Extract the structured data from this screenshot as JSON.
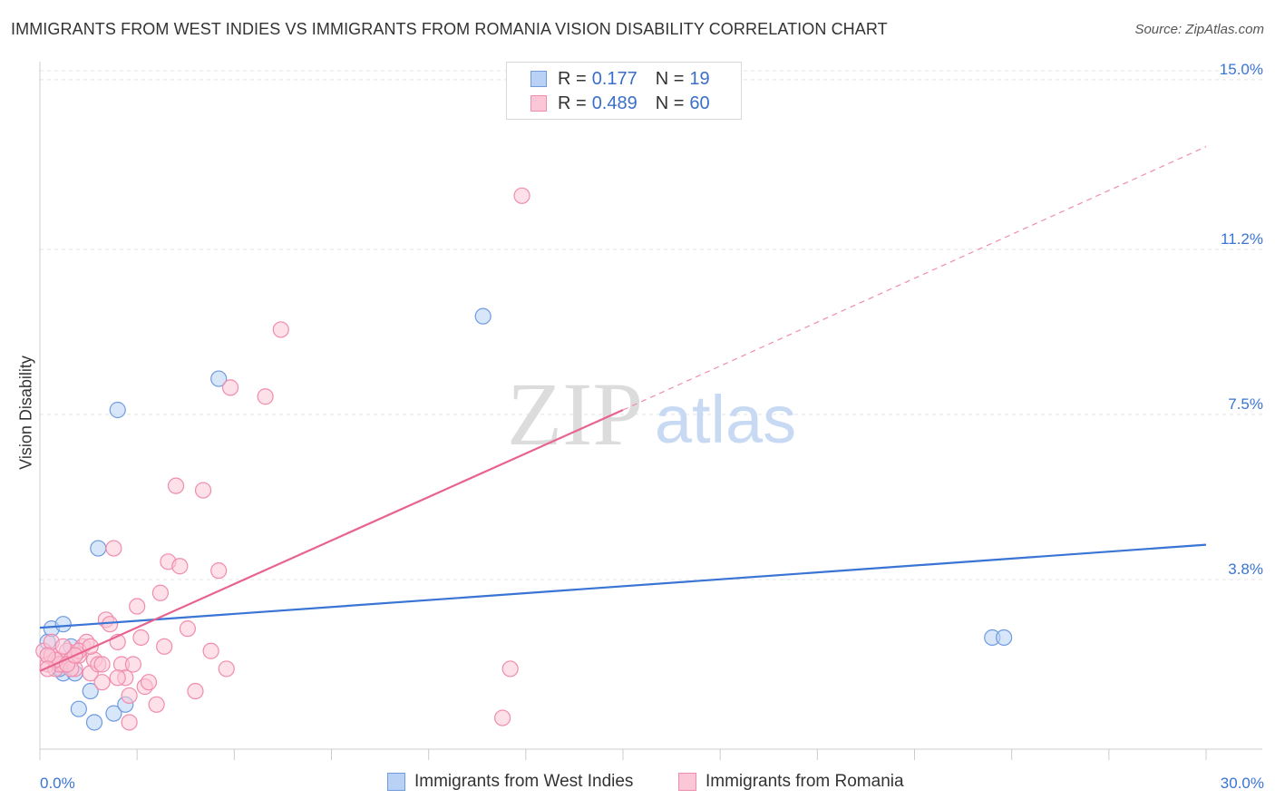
{
  "title": "IMMIGRANTS FROM WEST INDIES VS IMMIGRANTS FROM ROMANIA VISION DISABILITY CORRELATION CHART",
  "source": "Source: ZipAtlas.com",
  "watermark": {
    "zip": "ZIP",
    "atlas": "atlas"
  },
  "legend": {
    "r_label": "R =",
    "n_label": "N =",
    "rows": [
      {
        "r": "0.177",
        "n": "19",
        "fill": "#b8d1f5",
        "stroke": "#6f9be0"
      },
      {
        "r": "0.489",
        "n": "60",
        "fill": "#fbc6d6",
        "stroke": "#f08cad"
      }
    ]
  },
  "chart_data": {
    "type": "scatter",
    "title": "IMMIGRANTS FROM WEST INDIES VS IMMIGRANTS FROM ROMANIA VISION DISABILITY CORRELATION CHART",
    "xlabel": "",
    "ylabel": "Vision Disability",
    "xlim": [
      0,
      30
    ],
    "ylim": [
      0,
      15.2
    ],
    "x_ticks": [
      {
        "value": 0,
        "label": "0.0%"
      },
      {
        "value": 30,
        "label": "30.0%"
      }
    ],
    "y_ticks": [
      {
        "value": 3.8,
        "label": "3.8%"
      },
      {
        "value": 7.5,
        "label": "7.5%"
      },
      {
        "value": 11.2,
        "label": "11.2%"
      },
      {
        "value": 15.0,
        "label": "15.0%"
      }
    ],
    "grid": true,
    "legend_position": "top-center",
    "series": [
      {
        "name": "Immigrants from West Indies",
        "color": "#3a74d4",
        "fill": "#b8d1f5",
        "stroke": "#6f9be0",
        "points": [
          [
            0.2,
            2.4
          ],
          [
            0.3,
            2.7
          ],
          [
            0.6,
            2.8
          ],
          [
            0.8,
            2.3
          ],
          [
            0.6,
            1.7
          ],
          [
            0.9,
            1.7
          ],
          [
            1.0,
            0.9
          ],
          [
            1.3,
            1.3
          ],
          [
            1.4,
            0.6
          ],
          [
            1.5,
            4.5
          ],
          [
            1.9,
            0.8
          ],
          [
            2.2,
            1.0
          ],
          [
            2.0,
            7.6
          ],
          [
            4.6,
            8.3
          ],
          [
            11.4,
            9.7
          ],
          [
            24.5,
            2.5
          ],
          [
            24.8,
            2.5
          ],
          [
            0.5,
            1.8
          ],
          [
            0.2,
            2.1
          ]
        ],
        "trend": {
          "x": [
            0,
            30
          ],
          "y": [
            2.72,
            4.58
          ],
          "dashed_extension": false
        }
      },
      {
        "name": "Immigrants from Romania",
        "color": "#e8638f",
        "fill": "#fbc6d6",
        "stroke": "#f08cad",
        "points": [
          [
            0.1,
            2.2
          ],
          [
            0.2,
            1.9
          ],
          [
            0.3,
            2.1
          ],
          [
            0.4,
            1.8
          ],
          [
            0.5,
            2.0
          ],
          [
            0.6,
            1.9
          ],
          [
            0.7,
            2.2
          ],
          [
            0.8,
            2.0
          ],
          [
            0.9,
            1.8
          ],
          [
            1.0,
            2.1
          ],
          [
            1.1,
            2.3
          ],
          [
            1.2,
            2.4
          ],
          [
            1.3,
            1.7
          ],
          [
            1.4,
            2.0
          ],
          [
            1.5,
            1.9
          ],
          [
            1.6,
            1.5
          ],
          [
            1.7,
            2.9
          ],
          [
            1.8,
            2.8
          ],
          [
            1.9,
            4.5
          ],
          [
            2.0,
            2.4
          ],
          [
            2.1,
            1.9
          ],
          [
            2.2,
            1.6
          ],
          [
            2.3,
            1.2
          ],
          [
            2.4,
            1.9
          ],
          [
            2.5,
            3.2
          ],
          [
            2.6,
            2.5
          ],
          [
            2.7,
            1.4
          ],
          [
            2.8,
            1.5
          ],
          [
            3.0,
            1.0
          ],
          [
            3.1,
            3.5
          ],
          [
            3.2,
            2.3
          ],
          [
            3.3,
            4.2
          ],
          [
            3.5,
            5.9
          ],
          [
            3.6,
            4.1
          ],
          [
            3.8,
            2.7
          ],
          [
            4.0,
            1.3
          ],
          [
            4.2,
            5.8
          ],
          [
            4.4,
            2.2
          ],
          [
            4.6,
            4.0
          ],
          [
            4.8,
            1.8
          ],
          [
            4.9,
            8.1
          ],
          [
            5.8,
            7.9
          ],
          [
            6.2,
            9.4
          ],
          [
            12.4,
            12.4
          ],
          [
            12.1,
            1.8
          ],
          [
            11.9,
            0.7
          ],
          [
            2.3,
            0.6
          ],
          [
            0.3,
            2.4
          ],
          [
            0.5,
            1.9
          ],
          [
            1.0,
            2.2
          ],
          [
            0.8,
            1.8
          ],
          [
            1.3,
            2.3
          ],
          [
            0.4,
            2.0
          ],
          [
            0.2,
            2.1
          ],
          [
            1.6,
            1.9
          ],
          [
            2.0,
            1.6
          ],
          [
            0.7,
            1.9
          ],
          [
            0.9,
            2.1
          ],
          [
            0.6,
            2.3
          ],
          [
            0.2,
            1.8
          ]
        ],
        "trend": {
          "x": [
            0,
            15
          ],
          "y": [
            1.75,
            7.6
          ],
          "dashed_extension": true,
          "dashed_to": {
            "x": 30,
            "y": 13.5
          }
        }
      }
    ]
  }
}
